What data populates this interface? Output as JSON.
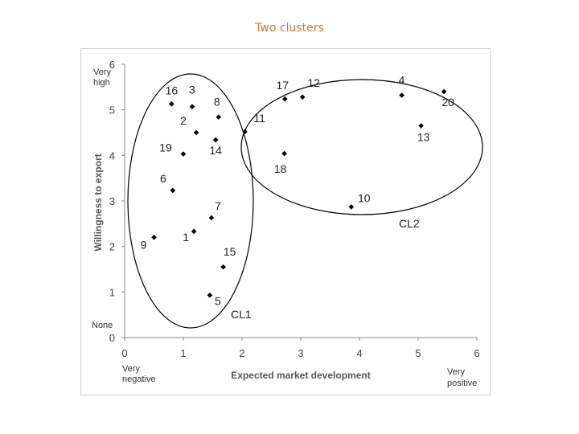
{
  "chart_data": {
    "type": "scatter",
    "title": "Two clusters",
    "xlabel": "Expected market development",
    "ylabel": "Willingness to export",
    "xlim": [
      0,
      6
    ],
    "ylim": [
      0,
      6
    ],
    "xticks": [
      "0",
      "1",
      "2",
      "3",
      "4",
      "5",
      "6"
    ],
    "yticks": [
      "0",
      "1",
      "2",
      "3",
      "4",
      "5",
      "6"
    ],
    "x_low_label": [
      "Very",
      "negative"
    ],
    "x_high_label": [
      "Very",
      "positive"
    ],
    "y_high_label": [
      "Very",
      "high"
    ],
    "y_low_label": "None",
    "points": [
      {
        "label": "1",
        "x": 1.18,
        "y": 2.33
      },
      {
        "label": "2",
        "x": 1.22,
        "y": 4.5
      },
      {
        "label": "3",
        "x": 1.15,
        "y": 5.07
      },
      {
        "label": "4",
        "x": 4.72,
        "y": 5.32
      },
      {
        "label": "5",
        "x": 1.45,
        "y": 0.93
      },
      {
        "label": "6",
        "x": 0.82,
        "y": 3.23
      },
      {
        "label": "7",
        "x": 1.48,
        "y": 2.63
      },
      {
        "label": "8",
        "x": 1.6,
        "y": 4.84
      },
      {
        "label": "9",
        "x": 0.5,
        "y": 2.2
      },
      {
        "label": "10",
        "x": 3.86,
        "y": 2.87
      },
      {
        "label": "11",
        "x": 2.05,
        "y": 4.52
      },
      {
        "label": "12",
        "x": 3.03,
        "y": 5.28
      },
      {
        "label": "13",
        "x": 5.05,
        "y": 4.65
      },
      {
        "label": "14",
        "x": 1.55,
        "y": 4.34
      },
      {
        "label": "15",
        "x": 1.68,
        "y": 1.55
      },
      {
        "label": "16",
        "x": 0.8,
        "y": 5.13
      },
      {
        "label": "17",
        "x": 2.73,
        "y": 5.24
      },
      {
        "label": "18",
        "x": 2.72,
        "y": 4.04
      },
      {
        "label": "19",
        "x": 1.0,
        "y": 4.03
      },
      {
        "label": "20",
        "x": 5.44,
        "y": 5.4
      }
    ],
    "clusters": [
      {
        "name": "CL1",
        "members": [
          "1",
          "2",
          "3",
          "5",
          "6",
          "7",
          "8",
          "9",
          "14",
          "15",
          "16",
          "19"
        ]
      },
      {
        "name": "CL2",
        "members": [
          "4",
          "10",
          "11",
          "12",
          "13",
          "17",
          "18",
          "20"
        ]
      }
    ],
    "marker_color": "#000000"
  }
}
